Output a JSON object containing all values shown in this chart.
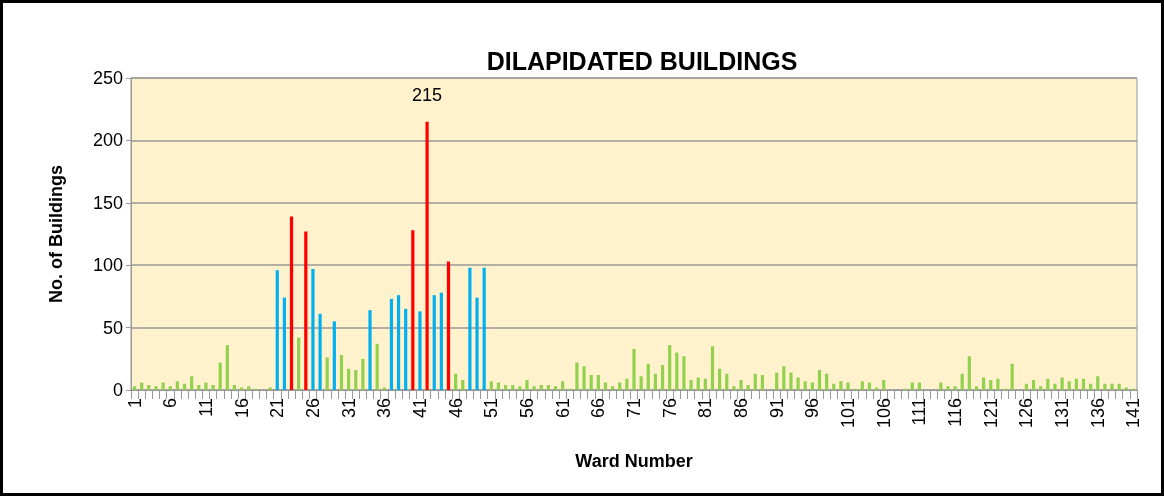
{
  "chart_data": {
    "type": "bar",
    "title": "DILAPIDATED BUILDINGS",
    "xlabel": "Ward Number",
    "ylabel": "No. of Buildings",
    "categories": [
      "1",
      null,
      null,
      null,
      null,
      "6",
      null,
      null,
      null,
      null,
      "11",
      null,
      null,
      null,
      null,
      "16",
      null,
      null,
      null,
      null,
      "21",
      null,
      null,
      null,
      null,
      "26",
      null,
      null,
      null,
      null,
      "31",
      null,
      null,
      null,
      null,
      "36",
      null,
      null,
      null,
      null,
      "41",
      null,
      null,
      null,
      null,
      "46",
      null,
      null,
      null,
      null,
      "51",
      null,
      null,
      null,
      null,
      "56",
      null,
      null,
      null,
      null,
      "61",
      null,
      null,
      null,
      null,
      "66",
      null,
      null,
      null,
      null,
      "71",
      null,
      null,
      null,
      null,
      "76",
      null,
      null,
      null,
      null,
      "81",
      null,
      null,
      null,
      null,
      "86",
      null,
      null,
      null,
      null,
      "91",
      null,
      null,
      null,
      null,
      "96",
      null,
      null,
      null,
      null,
      "101",
      null,
      null,
      null,
      null,
      "106",
      null,
      null,
      null,
      null,
      "111",
      null,
      null,
      null,
      null,
      "116",
      null,
      null,
      null,
      null,
      "121",
      null,
      null,
      null,
      null,
      "126",
      null,
      null,
      null,
      null,
      "131",
      null,
      null,
      null,
      null,
      "136",
      null,
      null,
      null,
      null,
      "141"
    ],
    "values": [
      3,
      6,
      4,
      3,
      6,
      3,
      7,
      5,
      11,
      4,
      6,
      4,
      22,
      36,
      4,
      2,
      3,
      1,
      0,
      2,
      96,
      74,
      139,
      42,
      127,
      97,
      61,
      26,
      55,
      28,
      17,
      16,
      25,
      64,
      37,
      2,
      73,
      76,
      65,
      128,
      63,
      215,
      76,
      78,
      103,
      13,
      8,
      98,
      74,
      98,
      7,
      6,
      4,
      4,
      3,
      8,
      3,
      4,
      4,
      3,
      7,
      1,
      22,
      19,
      12,
      12,
      6,
      3,
      6,
      9,
      33,
      11,
      21,
      13,
      20,
      36,
      30,
      27,
      8,
      10,
      9,
      35,
      17,
      13,
      3,
      8,
      4,
      13,
      12,
      0,
      14,
      19,
      14,
      10,
      7,
      6,
      16,
      13,
      5,
      7,
      6,
      1,
      7,
      6,
      2,
      8,
      0,
      0,
      1,
      6,
      6,
      0,
      0,
      6,
      3,
      3,
      13,
      27,
      3,
      10,
      8,
      9,
      1,
      21,
      0,
      5,
      8,
      3,
      9,
      5,
      10,
      7,
      9,
      9,
      5,
      11,
      5,
      5,
      5,
      2,
      1
    ],
    "colors": [
      "#92d050",
      "#92d050",
      "#92d050",
      "#92d050",
      "#92d050",
      "#92d050",
      "#92d050",
      "#92d050",
      "#92d050",
      "#92d050",
      "#92d050",
      "#92d050",
      "#92d050",
      "#92d050",
      "#92d050",
      "#92d050",
      "#92d050",
      "#92d050",
      "#92d050",
      "#92d050",
      "#00b0f0",
      "#00b0f0",
      "#ff0000",
      "#92d050",
      "#ff0000",
      "#00b0f0",
      "#00b0f0",
      "#92d050",
      "#00b0f0",
      "#92d050",
      "#92d050",
      "#92d050",
      "#92d050",
      "#00b0f0",
      "#92d050",
      "#92d050",
      "#00b0f0",
      "#00b0f0",
      "#00b0f0",
      "#ff0000",
      "#00b0f0",
      "#ff0000",
      "#00b0f0",
      "#00b0f0",
      "#ff0000",
      "#92d050",
      "#92d050",
      "#00b0f0",
      "#00b0f0",
      "#00b0f0",
      "#92d050",
      "#92d050",
      "#92d050",
      "#92d050",
      "#92d050",
      "#92d050",
      "#92d050",
      "#92d050",
      "#92d050",
      "#92d050",
      "#92d050",
      "#92d050",
      "#92d050",
      "#92d050",
      "#92d050",
      "#92d050",
      "#92d050",
      "#92d050",
      "#92d050",
      "#92d050",
      "#92d050",
      "#92d050",
      "#92d050",
      "#92d050",
      "#92d050",
      "#92d050",
      "#92d050",
      "#92d050",
      "#92d050",
      "#92d050",
      "#92d050",
      "#92d050",
      "#92d050",
      "#92d050",
      "#92d050",
      "#92d050",
      "#92d050",
      "#92d050",
      "#92d050",
      "#92d050",
      "#92d050",
      "#92d050",
      "#92d050",
      "#92d050",
      "#92d050",
      "#92d050",
      "#92d050",
      "#92d050",
      "#92d050",
      "#92d050",
      "#92d050",
      "#92d050",
      "#92d050",
      "#92d050",
      "#92d050",
      "#92d050",
      "#92d050",
      "#92d050",
      "#92d050",
      "#92d050",
      "#92d050",
      "#92d050",
      "#92d050",
      "#92d050",
      "#92d050",
      "#92d050",
      "#92d050",
      "#92d050",
      "#92d050",
      "#92d050",
      "#92d050",
      "#92d050",
      "#92d050",
      "#92d050",
      "#92d050",
      "#92d050",
      "#92d050",
      "#92d050",
      "#92d050",
      "#92d050",
      "#92d050",
      "#92d050",
      "#92d050",
      "#92d050",
      "#92d050",
      "#92d050",
      "#92d050",
      "#92d050",
      "#92d050",
      "#92d050",
      "#92d050"
    ],
    "value_labels": [
      null,
      null,
      null,
      null,
      null,
      null,
      null,
      null,
      null,
      null,
      null,
      null,
      null,
      null,
      null,
      null,
      null,
      null,
      null,
      null,
      null,
      null,
      null,
      null,
      null,
      null,
      null,
      null,
      null,
      null,
      null,
      null,
      null,
      null,
      null,
      null,
      null,
      null,
      null,
      null,
      null,
      "215",
      null,
      null,
      null,
      null,
      null,
      null,
      null,
      null,
      null,
      null,
      null,
      null,
      null,
      null,
      null,
      null,
      null,
      null,
      null,
      null,
      null,
      null,
      null,
      null,
      null,
      null,
      null,
      null,
      null,
      null,
      null,
      null,
      null,
      null,
      null,
      null,
      null,
      null,
      null,
      null,
      null,
      null,
      null,
      null,
      null,
      null,
      null,
      null,
      null,
      null,
      null,
      null,
      null,
      null,
      null,
      null,
      null,
      null,
      null,
      null,
      null,
      null,
      null,
      null,
      null,
      null,
      null,
      null,
      null,
      null,
      null,
      null,
      null,
      null,
      null,
      null,
      null,
      null,
      null,
      null,
      null,
      null,
      null,
      null,
      null,
      null,
      null,
      null,
      null,
      null,
      null,
      null,
      null,
      null,
      null,
      null,
      null,
      null,
      null
    ],
    "ylim": [
      0,
      250
    ],
    "yticks": [
      0,
      50,
      100,
      150,
      200,
      250
    ],
    "grid": "y"
  }
}
